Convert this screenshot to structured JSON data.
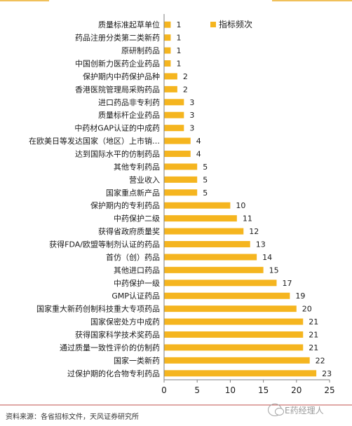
{
  "colors": {
    "bar": "#F5B51F",
    "axis": "#7f7f7f",
    "source_line": "#c0504d"
  },
  "source_text": "资料来源：各省招标文件，天风证券研究所",
  "watermark_text": "E药经理人",
  "watermark_icon": "wechat-icon",
  "chart_data": {
    "type": "bar",
    "orientation": "horizontal",
    "legend": {
      "entries": [
        "指标频次"
      ],
      "placement": "top-right"
    },
    "xlim": [
      0,
      25
    ],
    "xticks": [
      "0",
      "5",
      "10",
      "15",
      "20",
      "25"
    ],
    "series": [
      {
        "name": "指标频次",
        "categories": [
          "质量标准起草单位",
          "药品注册分类第二类新药",
          "原研制药品",
          "中国创新力医药企业药品",
          "保护期内中药保护品种",
          "香港医院管理局采购药品",
          "进口药品非专利药",
          "质量标杆企业药品",
          "中药材GAP认证的中成药",
          "在欧美日等发达国家（地区）上市销…",
          "达到国际水平的仿制药品",
          "其他专利药品",
          "营业收入",
          "国家重点新产品",
          "保护期内的专利药品",
          "中药保护二级",
          "获得省政府质量奖",
          "获得FDA/欧盟等制剂认证的药品",
          "首仿（创）药品",
          "其他进口药品",
          "中药保护一级",
          "GMP认证药品",
          "国家重大新药创制科技重大专项药品",
          "国家保密处方中成药",
          "获得国家科学技术奖药品",
          "通过质量一致性评价的仿制药",
          "国家一类新药",
          "过保护期的化合物专利药品"
        ],
        "values": [
          1,
          1,
          1,
          1,
          2,
          2,
          3,
          3,
          3,
          4,
          4,
          5,
          5,
          5,
          10,
          11,
          12,
          13,
          14,
          15,
          17,
          19,
          20,
          21,
          21,
          21,
          22,
          23
        ]
      }
    ]
  }
}
